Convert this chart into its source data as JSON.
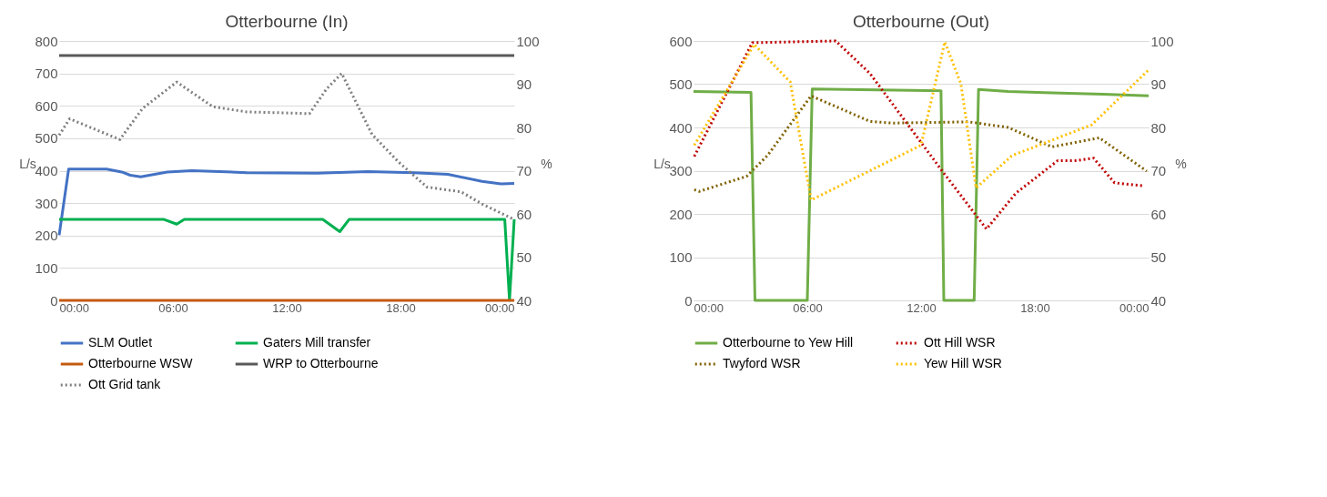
{
  "chart_data": [
    {
      "type": "line",
      "title": "Otterbourne (In)",
      "ylabel": "L/s",
      "y2label": "%",
      "ylim": [
        0,
        800
      ],
      "yticks": [
        0,
        100,
        200,
        300,
        400,
        500,
        600,
        700,
        800
      ],
      "y2lim": [
        40,
        100
      ],
      "y2ticks": [
        40,
        50,
        60,
        70,
        80,
        90,
        100
      ],
      "xlim": [
        0,
        24
      ],
      "xticks": [
        {
          "value": 0,
          "label": "00:00"
        },
        {
          "value": 6,
          "label": "06:00"
        },
        {
          "value": 12,
          "label": "12:00"
        },
        {
          "value": 18,
          "label": "18:00"
        },
        {
          "value": 24,
          "label": "00:00"
        }
      ],
      "grid": "y",
      "legend": "bottom",
      "series": [
        {
          "name": "SLM Outlet",
          "color": "#4472c4",
          "line_style": "solid",
          "x": [
            0,
            0.5,
            2.5,
            3.3,
            3.75,
            4.3,
            5.7,
            7.0,
            9.9,
            13.6,
            16.3,
            18.7,
            20.5,
            22.3,
            23.3,
            24
          ],
          "values": [
            201,
            405,
            405,
            396,
            386,
            381,
            396,
            400,
            394,
            392,
            397,
            394,
            389,
            367,
            359,
            361
          ]
        },
        {
          "name": "Gaters Mill transfer",
          "color": "#00b050",
          "line_style": "solid",
          "x": [
            0,
            5.5,
            6.2,
            6.6,
            13.9,
            14.8,
            15.3,
            23.5,
            23.75,
            24
          ],
          "values": [
            250,
            250,
            235,
            250,
            250,
            212,
            250,
            250,
            0,
            250
          ]
        },
        {
          "name": "Otterbourne WSW",
          "color": "#c55a11",
          "line_style": "solid",
          "x": [
            0,
            24
          ],
          "values": [
            0,
            0
          ]
        },
        {
          "name": "WRP to Otterbourne",
          "color": "#595959",
          "line_style": "solid",
          "x": [
            0,
            24
          ],
          "values": [
            755,
            755
          ]
        },
        {
          "name": "Ott Grid tank",
          "color": "#7f7f7f",
          "line_style": "dotted",
          "axis": "y2",
          "x": [
            0,
            0.55,
            3.2,
            4.4,
            6.2,
            8.1,
            9.9,
            13.2,
            14.1,
            14.9,
            16.5,
            17.9,
            19.4,
            21.2,
            22.3,
            24
          ],
          "values": [
            78.2,
            82.0,
            77.2,
            84.4,
            90.5,
            84.8,
            83.6,
            83.2,
            88.9,
            92.5,
            78.4,
            72.0,
            66.2,
            65.1,
            62.3,
            58.7
          ]
        }
      ]
    },
    {
      "type": "line",
      "title": "Otterbourne (Out)",
      "ylabel": "L/s",
      "y2label": "%",
      "ylim": [
        0,
        600
      ],
      "yticks": [
        0,
        100,
        200,
        300,
        400,
        500,
        600
      ],
      "y2lim": [
        40,
        100
      ],
      "y2ticks": [
        40,
        50,
        60,
        70,
        80,
        90,
        100
      ],
      "xlim": [
        0,
        24
      ],
      "xticks": [
        {
          "value": 0,
          "label": "00:00"
        },
        {
          "value": 6,
          "label": "06:00"
        },
        {
          "value": 12,
          "label": "12:00"
        },
        {
          "value": 18,
          "label": "18:00"
        },
        {
          "value": 24,
          "label": "00:00"
        }
      ],
      "grid": "y",
      "legend": "bottom",
      "series": [
        {
          "name": "Otterbourne to Yew Hill",
          "color": "#70ad47",
          "line_style": "solid",
          "x": [
            0,
            3.03,
            3.24,
            6.0,
            6.26,
            13.05,
            13.2,
            14.8,
            15.03,
            16.6,
            18.9,
            21.6,
            24
          ],
          "values": [
            483,
            481,
            0,
            0,
            489,
            485,
            0,
            0,
            488,
            483,
            480,
            477,
            473
          ]
        },
        {
          "name": "Ott Hill WSR",
          "color": "#c00000",
          "line_style": "dotted",
          "axis": "y2",
          "x": [
            0.04,
            3.1,
            7.5,
            9.3,
            13.05,
            15.45,
            17.0,
            19.2,
            20.1,
            21.1,
            22.2,
            23.7
          ],
          "values": [
            73.3,
            99.6,
            100,
            92.5,
            70.3,
            56.5,
            64.8,
            72.3,
            72.3,
            72.9,
            67.2,
            66.5
          ]
        },
        {
          "name": "Twyford WSR",
          "color": "#7f6000",
          "line_style": "dotted",
          "axis": "y2",
          "x": [
            0.04,
            0.3,
            2.8,
            3.9,
            6.2,
            9.3,
            10.5,
            14.5,
            16.6,
            18.9,
            21.4,
            23.9
          ],
          "values": [
            65.6,
            65.2,
            68.7,
            73.5,
            87.3,
            81.4,
            81.0,
            81.3,
            80.0,
            75.5,
            77.6,
            69.9
          ]
        },
        {
          "name": "Yew Hill WSR",
          "color": "#ffc000",
          "line_style": "dotted",
          "axis": "y2",
          "x": [
            0.04,
            3.2,
            5.1,
            6.2,
            12.0,
            13.25,
            14.1,
            14.9,
            16.8,
            21.0,
            24
          ],
          "values": [
            75.9,
            99.2,
            90.5,
            63.2,
            75.9,
            99.8,
            90.1,
            66.0,
            73.5,
            80.6,
            93.3
          ]
        }
      ]
    }
  ]
}
